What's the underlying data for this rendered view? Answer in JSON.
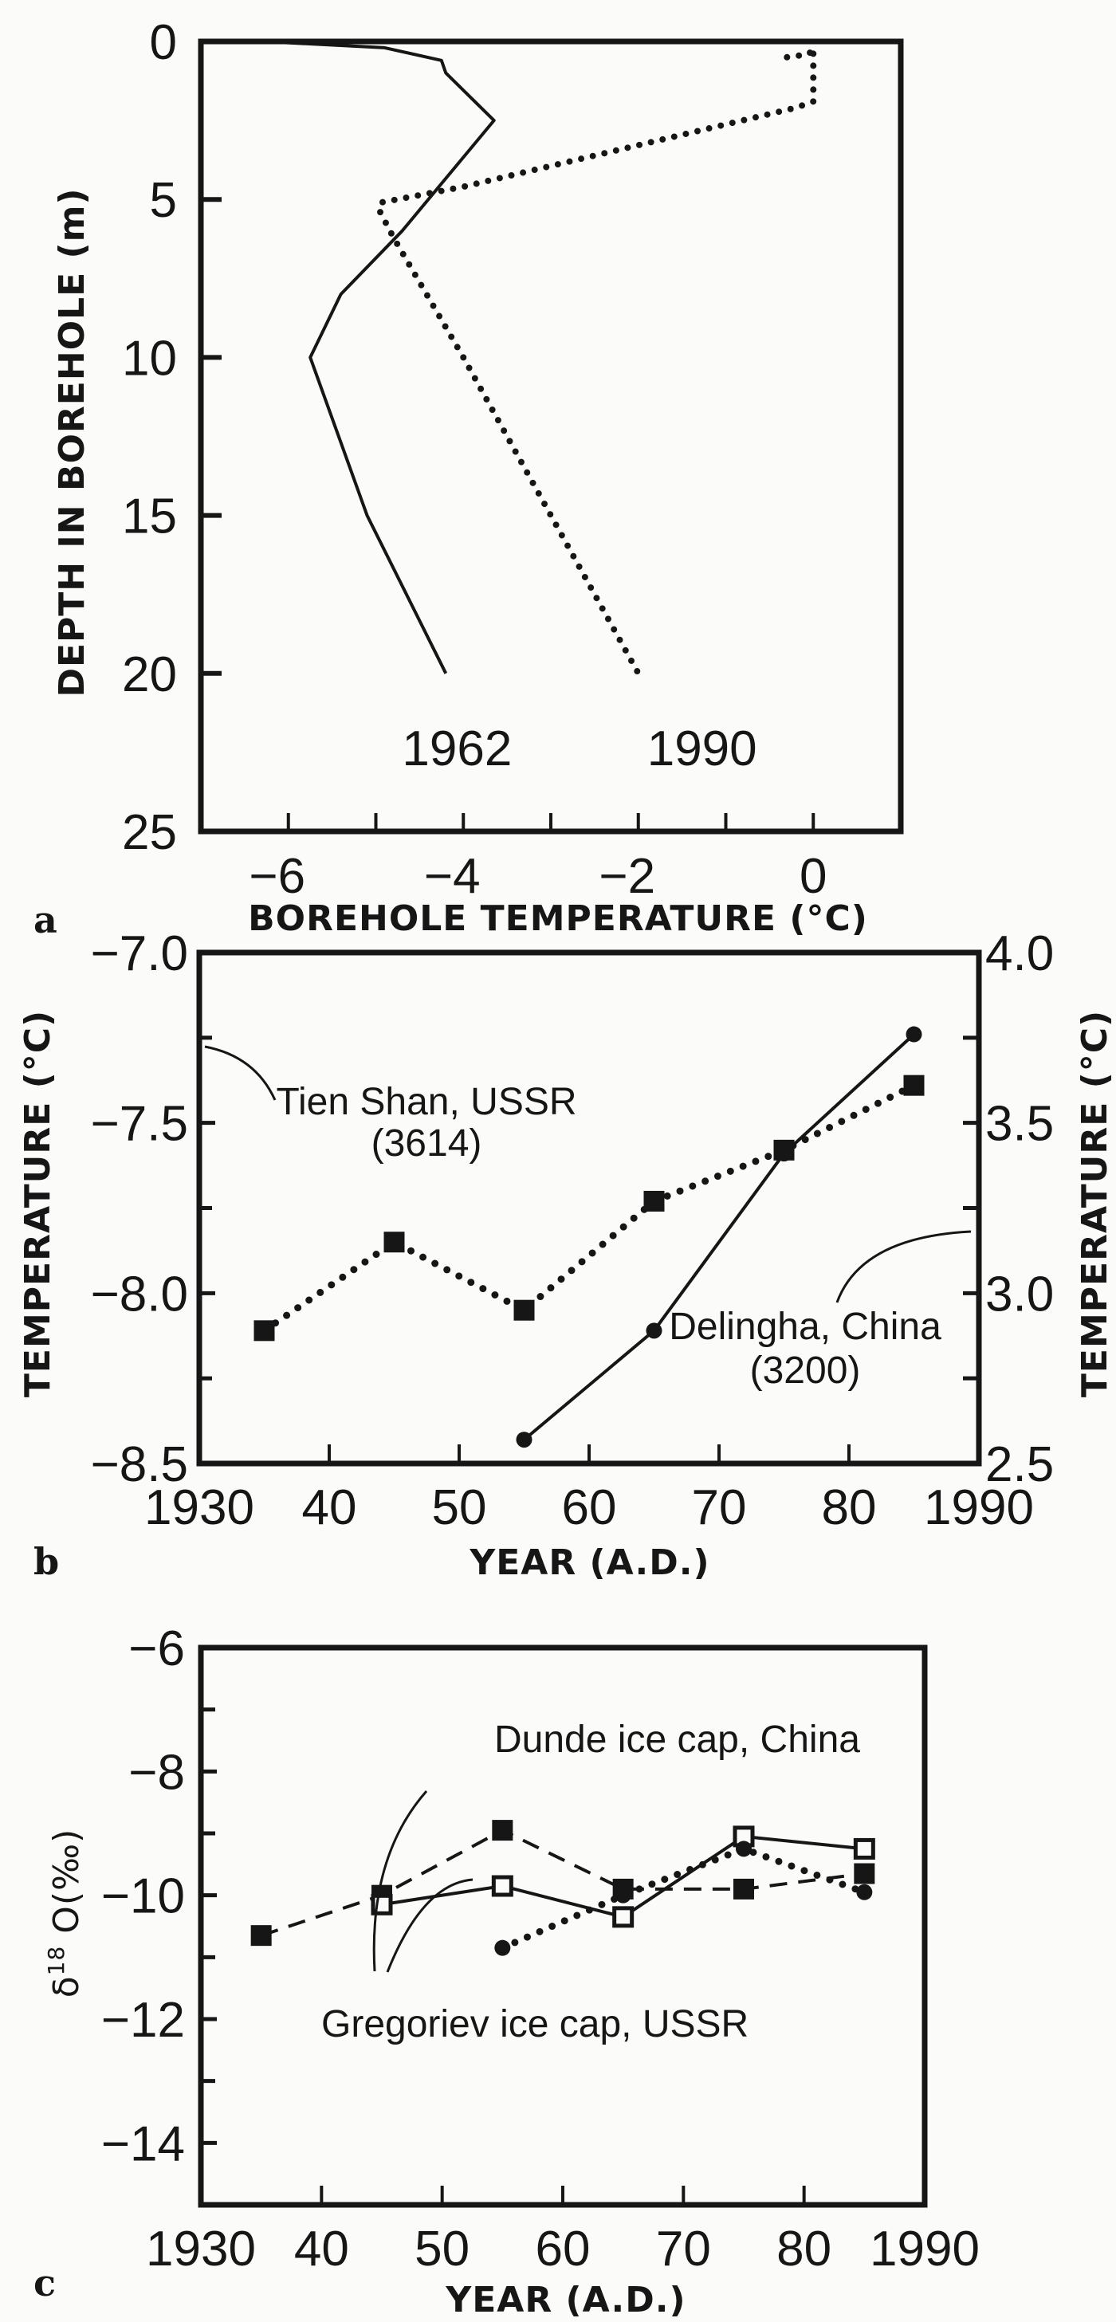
{
  "figure": {
    "panels": [
      "a",
      "b",
      "c"
    ]
  },
  "chart_data": [
    {
      "panel": "a",
      "type": "line",
      "title": "",
      "xlabel": "BOREHOLE TEMPERATURE (°C)",
      "ylabel": "DEPTH IN BOREHOLE (m)",
      "xlim": [
        -7,
        1
      ],
      "ylim": [
        25,
        0
      ],
      "y_inverted": true,
      "x_ticks": [
        -6,
        -4,
        -2,
        0
      ],
      "x_minor_ticks": [
        -5,
        -3,
        -1
      ],
      "y_ticks": [
        0,
        5,
        10,
        15,
        20,
        25
      ],
      "grid": false,
      "legend": "inline labels",
      "series": [
        {
          "name": "1962",
          "style": "solid",
          "label_pos": {
            "x": -4.7,
            "y": 22.4
          },
          "points": [
            {
              "t": -6.3,
              "d": 0.0
            },
            {
              "t": -4.9,
              "d": 0.2
            },
            {
              "t": -4.25,
              "d": 0.6
            },
            {
              "t": -4.2,
              "d": 1.0
            },
            {
              "t": -3.65,
              "d": 2.5
            },
            {
              "t": -4.7,
              "d": 6.0
            },
            {
              "t": -5.4,
              "d": 8.0
            },
            {
              "t": -5.75,
              "d": 10.0
            },
            {
              "t": -5.1,
              "d": 15.0
            },
            {
              "t": -4.2,
              "d": 20.0
            }
          ]
        },
        {
          "name": "1990",
          "style": "dotted",
          "label_pos": {
            "x": -1.9,
            "y": 22.4
          },
          "points": [
            {
              "t": -0.3,
              "d": 0.5
            },
            {
              "t": -0.05,
              "d": 0.4
            },
            {
              "t": 0.0,
              "d": 0.2
            },
            {
              "t": 0.0,
              "d": 1.9
            },
            {
              "t": -0.2,
              "d": 2.1
            },
            {
              "t": -4.0,
              "d": 4.6
            },
            {
              "t": -4.95,
              "d": 5.1
            },
            {
              "t": -4.95,
              "d": 5.4
            },
            {
              "t": -4.8,
              "d": 6.2
            },
            {
              "t": -4.0,
              "d": 10.0
            },
            {
              "t": -2.0,
              "d": 20.0
            }
          ]
        }
      ]
    },
    {
      "panel": "b",
      "type": "line",
      "title": "",
      "xlabel": "YEAR (A.D.)",
      "ylabel": "TEMPERATURE (°C)",
      "ylabel_right": "TEMPERATURE (°C)",
      "xlim": [
        1930,
        1990
      ],
      "ylim": [
        -8.5,
        -7.0
      ],
      "ylim_right": [
        2.5,
        4.0
      ],
      "x_ticks": [
        {
          "v": 1930,
          "label": "1930"
        },
        {
          "v": 1940,
          "label": "40"
        },
        {
          "v": 1950,
          "label": "50"
        },
        {
          "v": 1960,
          "label": "60"
        },
        {
          "v": 1970,
          "label": "70"
        },
        {
          "v": 1980,
          "label": "80"
        },
        {
          "v": 1990,
          "label": "1990"
        }
      ],
      "y_ticks": [
        {
          "v": -7.0,
          "label": "−7.0"
        },
        {
          "v": -7.5,
          "label": "−7.5"
        },
        {
          "v": -8.0,
          "label": "−8.0"
        },
        {
          "v": -8.5,
          "label": "−8.5"
        }
      ],
      "y_minor_ticks": [
        -7.25,
        -7.75,
        -8.25
      ],
      "y_ticks_right": [
        {
          "v": 4.0,
          "label": "4.0"
        },
        {
          "v": 3.5,
          "label": "3.5"
        },
        {
          "v": 3.0,
          "label": "3.0"
        },
        {
          "v": 2.5,
          "label": "2.5"
        }
      ],
      "y_minor_ticks_right": [
        3.75,
        3.25,
        2.75
      ],
      "grid": false,
      "series": [
        {
          "name": "Tien Shan, USSR (3614)",
          "label_line1": "Tien Shan, USSR",
          "label_line2": "(3614)",
          "axis": "left",
          "style": "dotted",
          "marker": "filled-square",
          "x": [
            1935,
            1945,
            1955,
            1965,
            1975,
            1985
          ],
          "values": [
            -8.11,
            -7.85,
            -8.05,
            -7.73,
            -7.58,
            -7.39
          ]
        },
        {
          "name": "Delingha, China (3200)",
          "label_line1": "Delingha, China",
          "label_line2": "(3200)",
          "axis": "right",
          "style": "solid",
          "marker": "filled-circle",
          "x": [
            1955,
            1965,
            1975,
            1985
          ],
          "values": [
            2.57,
            2.89,
            3.41,
            3.76
          ]
        }
      ]
    },
    {
      "panel": "c",
      "type": "line",
      "title": "",
      "xlabel": "YEAR (A.D.)",
      "ylabel": "δ18O(‰)",
      "xlim": [
        1930,
        1990
      ],
      "ylim": [
        -15,
        -6
      ],
      "x_ticks": [
        {
          "v": 1930,
          "label": "1930"
        },
        {
          "v": 1940,
          "label": "40"
        },
        {
          "v": 1950,
          "label": "50"
        },
        {
          "v": 1960,
          "label": "60"
        },
        {
          "v": 1970,
          "label": "70"
        },
        {
          "v": 1980,
          "label": "80"
        },
        {
          "v": 1990,
          "label": "1990"
        }
      ],
      "y_ticks": [
        {
          "v": -6,
          "label": "−6"
        },
        {
          "v": -8,
          "label": "−8"
        },
        {
          "v": -10,
          "label": "−10"
        },
        {
          "v": -12,
          "label": "−12"
        },
        {
          "v": -14,
          "label": "−14"
        }
      ],
      "y_minor_ticks": [
        -7,
        -9,
        -11,
        -13
      ],
      "grid": false,
      "annotations": [
        "Dunde ice cap, China",
        "Gregoriev ice cap, USSR"
      ],
      "series": [
        {
          "name": "Dunde ice cap, China (filled squares)",
          "style": "dashed",
          "marker": "filled-square",
          "x": [
            1935,
            1945,
            1955,
            1965,
            1975,
            1985
          ],
          "values": [
            -10.65,
            -10.0,
            -8.95,
            -9.9,
            -9.9,
            -9.65
          ]
        },
        {
          "name": "Gregoriev ice cap, USSR (open squares)",
          "style": "solid",
          "marker": "open-square",
          "x": [
            1945,
            1955,
            1965,
            1975,
            1985
          ],
          "values": [
            -10.15,
            -9.85,
            -10.35,
            -9.05,
            -9.25
          ]
        },
        {
          "name": "Gregoriev ice cap, USSR (filled circles)",
          "style": "dotted",
          "marker": "filled-circle",
          "x": [
            1955,
            1965,
            1975,
            1985
          ],
          "values": [
            -10.85,
            -10.0,
            -9.25,
            -9.95
          ]
        }
      ]
    }
  ]
}
